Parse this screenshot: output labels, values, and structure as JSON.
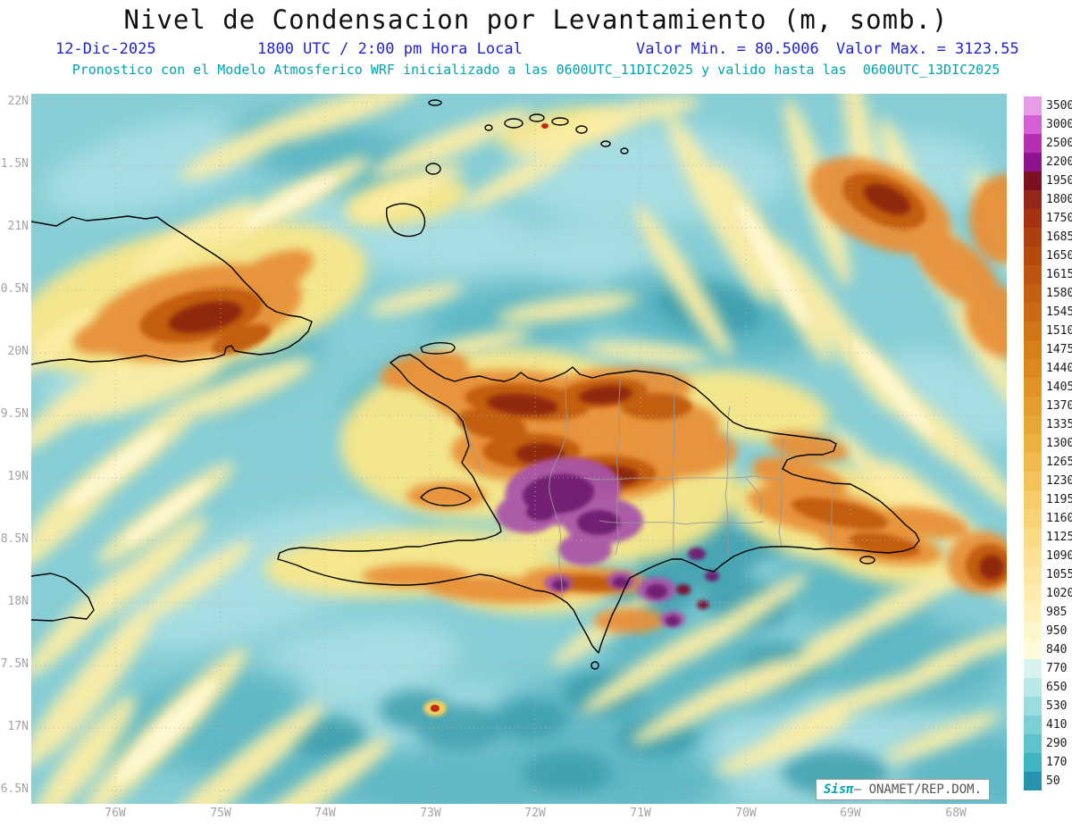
{
  "title": "Nivel de Condensacion por Levantamiento (m, somb.)",
  "header": {
    "date": "12-Dic-2025",
    "time": "1800 UTC / 2:00 pm Hora Local",
    "min_label": "Valor Min. = 80.5006",
    "max_label": "Valor Max. = 3123.55",
    "forecast_line": "Pronostico con el Modelo Atmosferico WRF inicializado a las 0600UTC_11DIC2025 y valido hasta las  0600UTC_13DIC2025"
  },
  "axes": {
    "lat_labels": [
      "22N",
      "1.5N",
      "21N",
      "0.5N",
      "20N",
      "9.5N",
      "19N",
      "8.5N",
      "18N",
      "7.5N",
      "17N",
      "6.5N"
    ],
    "lon_labels": [
      "76W",
      "75W",
      "74W",
      "73W",
      "72W",
      "71W",
      "70W",
      "69W",
      "68W"
    ]
  },
  "colorbar": {
    "levels": [
      {
        "value": "3500",
        "color": "#e79ce7"
      },
      {
        "value": "3000",
        "color": "#d55fd5"
      },
      {
        "value": "2500",
        "color": "#b52fb5"
      },
      {
        "value": "2200",
        "color": "#8f138f"
      },
      {
        "value": "1950",
        "color": "#7c1022"
      },
      {
        "value": "1800",
        "color": "#96251a"
      },
      {
        "value": "1750",
        "color": "#a53312"
      },
      {
        "value": "1685",
        "color": "#ae3f0e"
      },
      {
        "value": "1650",
        "color": "#b64a0d"
      },
      {
        "value": "1615",
        "color": "#bd550e"
      },
      {
        "value": "1580",
        "color": "#c46010"
      },
      {
        "value": "1545",
        "color": "#ca6a12"
      },
      {
        "value": "1510",
        "color": "#d07514"
      },
      {
        "value": "1475",
        "color": "#d67f17"
      },
      {
        "value": "1440",
        "color": "#db891c"
      },
      {
        "value": "1405",
        "color": "#e09322"
      },
      {
        "value": "1370",
        "color": "#e49d2a"
      },
      {
        "value": "1335",
        "color": "#e8a734"
      },
      {
        "value": "1300",
        "color": "#ecb13f"
      },
      {
        "value": "1265",
        "color": "#f0ba4c"
      },
      {
        "value": "1230",
        "color": "#f3c35a"
      },
      {
        "value": "1195",
        "color": "#f6cb68"
      },
      {
        "value": "1160",
        "color": "#f8d376"
      },
      {
        "value": "1125",
        "color": "#fada84"
      },
      {
        "value": "1090",
        "color": "#fbe092"
      },
      {
        "value": "1055",
        "color": "#fce6a0"
      },
      {
        "value": "1020",
        "color": "#fdecae"
      },
      {
        "value": "985",
        "color": "#fef1bc"
      },
      {
        "value": "950",
        "color": "#fff5ca"
      },
      {
        "value": "840",
        "color": "#fffad8"
      },
      {
        "value": "770",
        "color": "#d8f2f0"
      },
      {
        "value": "650",
        "color": "#b9e8e9"
      },
      {
        "value": "530",
        "color": "#9adcdf"
      },
      {
        "value": "410",
        "color": "#7bd0d5"
      },
      {
        "value": "290",
        "color": "#5cc3cb"
      },
      {
        "value": "170",
        "color": "#3eb5c1"
      },
      {
        "value": "50",
        "color": "#2794ad"
      }
    ]
  },
  "watermark": {
    "brand": "Sisπ",
    "text": "– ONAMET/REP.DOM."
  }
}
